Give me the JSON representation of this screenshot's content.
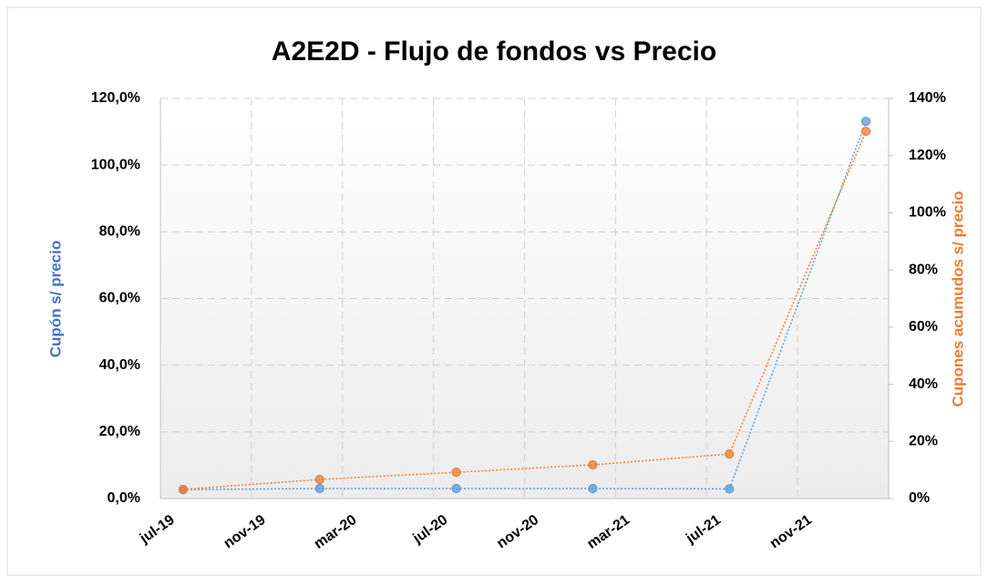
{
  "chart_data": {
    "type": "line",
    "title": "A2E2D - Flujo de fondos vs Precio",
    "ylabel": "Cupón s/ precio",
    "y2label": "Cupones acumudos s/ precio",
    "x": [
      "2019-08",
      "2020-02",
      "2020-08",
      "2021-02",
      "2021-08",
      "2022-02"
    ],
    "xlim": [
      "2019-07",
      "2022-03"
    ],
    "xticks": [
      {
        "value": "2019-07",
        "label": "jul-19"
      },
      {
        "value": "2019-11",
        "label": "nov-19"
      },
      {
        "value": "2020-03",
        "label": "mar-20"
      },
      {
        "value": "2020-07",
        "label": "jul-20"
      },
      {
        "value": "2020-11",
        "label": "nov-20"
      },
      {
        "value": "2021-03",
        "label": "mar-21"
      },
      {
        "value": "2021-07",
        "label": "jul-21"
      },
      {
        "value": "2021-11",
        "label": "nov-21"
      }
    ],
    "ylim": [
      0,
      120
    ],
    "yticks": [
      {
        "value": 0,
        "label": "0,0%"
      },
      {
        "value": 20,
        "label": "20,0%"
      },
      {
        "value": 40,
        "label": "40,0%"
      },
      {
        "value": 60,
        "label": "60,0%"
      },
      {
        "value": 80,
        "label": "80,0%"
      },
      {
        "value": 100,
        "label": "100,0%"
      },
      {
        "value": 120,
        "label": "120,0%"
      }
    ],
    "y2lim": [
      0,
      140
    ],
    "y2ticks": [
      {
        "value": 0,
        "label": "0%"
      },
      {
        "value": 20,
        "label": "20%"
      },
      {
        "value": 40,
        "label": "40%"
      },
      {
        "value": 60,
        "label": "60%"
      },
      {
        "value": 80,
        "label": "80%"
      },
      {
        "value": 100,
        "label": "100%"
      },
      {
        "value": 120,
        "label": "120%"
      },
      {
        "value": 140,
        "label": "140%"
      }
    ],
    "grid": true,
    "series": [
      {
        "color": "#5b9bd5",
        "values": [
          2.7,
          3.0,
          3.0,
          3.0,
          2.9,
          113.1
        ]
      },
      {
        "color": "#ed7d31",
        "axis": "y2",
        "values": [
          3.2,
          6.7,
          9.2,
          11.8,
          15.6,
          128.5
        ]
      }
    ]
  }
}
